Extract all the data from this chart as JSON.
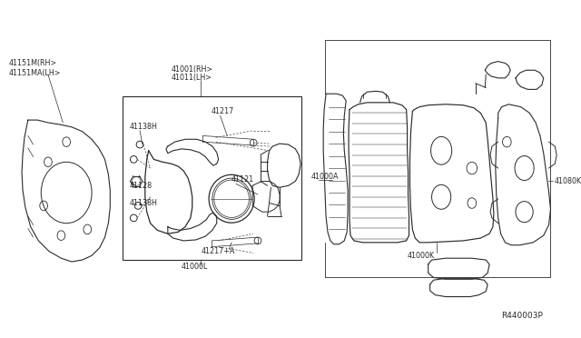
{
  "bg_color": "#ffffff",
  "line_color": "#2a2a2a",
  "label_color": "#2a2a2a",
  "fig_width": 6.4,
  "fig_height": 3.72,
  "dpi": 100,
  "reference_code": "R440003P",
  "label_fontsize": 5.8,
  "ref_fontsize": 6.5,
  "parts": {
    "41151M": "41151M(RH>",
    "41151MA": "41151MA(LH>",
    "41001": "41001(RH>",
    "41011": "41011(LH>",
    "41138H": "41138H",
    "41217": "41217",
    "41128": "41128",
    "41121": "41121",
    "41217A": "41217+A",
    "41000L": "41000L",
    "41000A": "41000A",
    "41000K": "41000K",
    "41080K": "41080K"
  }
}
